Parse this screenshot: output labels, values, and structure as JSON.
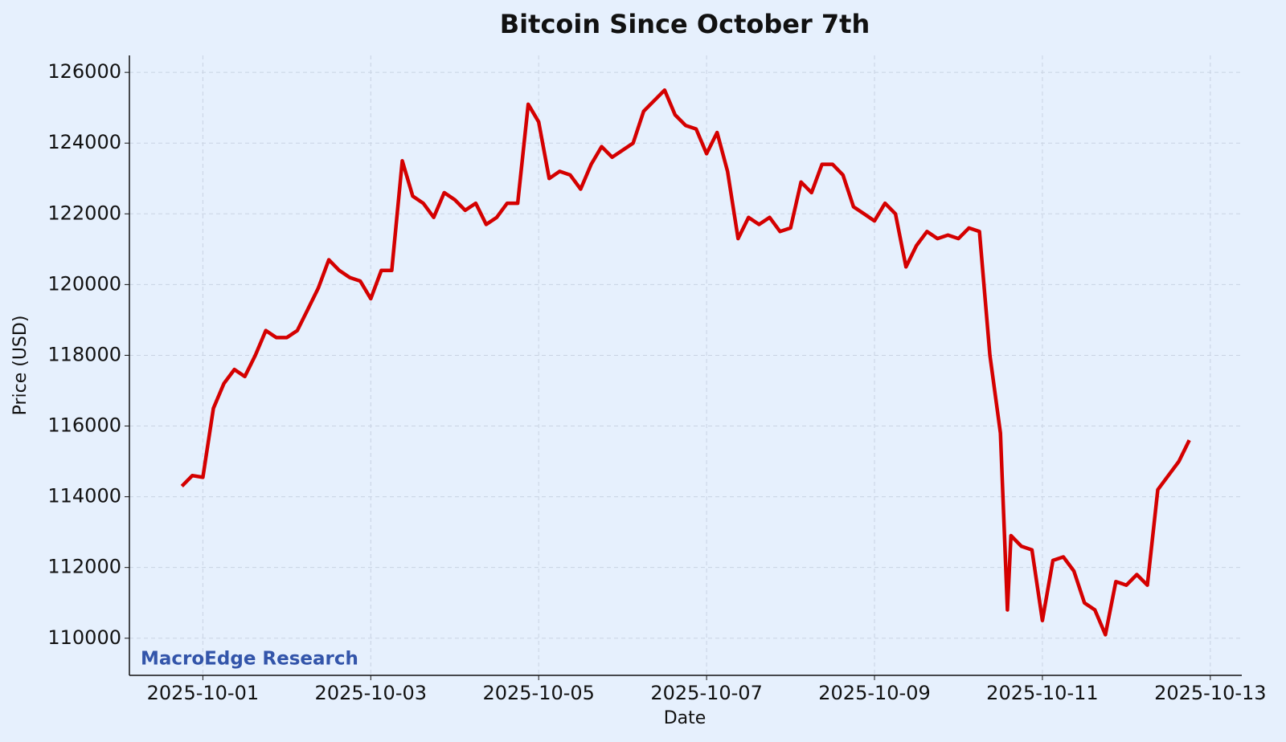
{
  "chart_data": {
    "type": "line",
    "title": "Bitcoin Since October 7th",
    "x_label": "Date",
    "y_label": "Price (USD)",
    "annotation": "MacroEdge Research",
    "color": "#d40000",
    "grid": true,
    "x": [
      "2025-09-30T18:00",
      "2025-09-30T21:00",
      "2025-10-01T00:00",
      "2025-10-01T03:00",
      "2025-10-01T06:00",
      "2025-10-01T09:00",
      "2025-10-01T12:00",
      "2025-10-01T15:00",
      "2025-10-01T18:00",
      "2025-10-01T21:00",
      "2025-10-02T00:00",
      "2025-10-02T03:00",
      "2025-10-02T06:00",
      "2025-10-02T09:00",
      "2025-10-02T12:00",
      "2025-10-02T15:00",
      "2025-10-02T18:00",
      "2025-10-02T21:00",
      "2025-10-03T00:00",
      "2025-10-03T03:00",
      "2025-10-03T06:00",
      "2025-10-03T09:00",
      "2025-10-03T12:00",
      "2025-10-03T15:00",
      "2025-10-03T18:00",
      "2025-10-03T21:00",
      "2025-10-04T00:00",
      "2025-10-04T03:00",
      "2025-10-04T06:00",
      "2025-10-04T09:00",
      "2025-10-04T12:00",
      "2025-10-04T15:00",
      "2025-10-04T18:00",
      "2025-10-04T21:00",
      "2025-10-05T00:00",
      "2025-10-05T03:00",
      "2025-10-05T06:00",
      "2025-10-05T09:00",
      "2025-10-05T12:00",
      "2025-10-05T15:00",
      "2025-10-05T18:00",
      "2025-10-05T21:00",
      "2025-10-06T00:00",
      "2025-10-06T03:00",
      "2025-10-06T06:00",
      "2025-10-06T09:00",
      "2025-10-06T12:00",
      "2025-10-06T15:00",
      "2025-10-06T18:00",
      "2025-10-06T21:00",
      "2025-10-07T00:00",
      "2025-10-07T03:00",
      "2025-10-07T06:00",
      "2025-10-07T09:00",
      "2025-10-07T12:00",
      "2025-10-07T15:00",
      "2025-10-07T18:00",
      "2025-10-07T21:00",
      "2025-10-08T00:00",
      "2025-10-08T03:00",
      "2025-10-08T06:00",
      "2025-10-08T09:00",
      "2025-10-08T12:00",
      "2025-10-08T15:00",
      "2025-10-08T18:00",
      "2025-10-08T21:00",
      "2025-10-09T00:00",
      "2025-10-09T03:00",
      "2025-10-09T06:00",
      "2025-10-09T09:00",
      "2025-10-09T12:00",
      "2025-10-09T15:00",
      "2025-10-09T18:00",
      "2025-10-09T21:00",
      "2025-10-10T00:00",
      "2025-10-10T03:00",
      "2025-10-10T06:00",
      "2025-10-10T09:00",
      "2025-10-10T12:00",
      "2025-10-10T14:00",
      "2025-10-10T15:00",
      "2025-10-10T18:00",
      "2025-10-10T21:00",
      "2025-10-11T00:00",
      "2025-10-11T03:00",
      "2025-10-11T06:00",
      "2025-10-11T09:00",
      "2025-10-11T12:00",
      "2025-10-11T15:00",
      "2025-10-11T18:00",
      "2025-10-11T21:00",
      "2025-10-12T00:00",
      "2025-10-12T03:00",
      "2025-10-12T06:00",
      "2025-10-12T09:00",
      "2025-10-12T12:00",
      "2025-10-12T15:00",
      "2025-10-12T18:00"
    ],
    "values": [
      114300,
      114600,
      114550,
      116500,
      117200,
      117600,
      117400,
      118000,
      118700,
      118500,
      118500,
      118700,
      119300,
      119900,
      120700,
      120400,
      120200,
      120100,
      119600,
      120400,
      120400,
      123500,
      122500,
      122300,
      121900,
      122600,
      122400,
      122100,
      122300,
      121700,
      121900,
      122300,
      122300,
      125100,
      124600,
      123000,
      123200,
      123100,
      122700,
      123400,
      123900,
      123600,
      123800,
      124000,
      124900,
      125200,
      125500,
      124800,
      124500,
      124400,
      123700,
      124300,
      123200,
      121300,
      121900,
      121700,
      121900,
      121500,
      121600,
      122900,
      122600,
      123400,
      123400,
      123100,
      122200,
      122000,
      121800,
      122300,
      122000,
      120500,
      121100,
      121500,
      121300,
      121400,
      121300,
      121600,
      121500,
      118000,
      115800,
      110800,
      112900,
      112600,
      112500,
      110500,
      112200,
      112300,
      111900,
      111000,
      110800,
      110100,
      111600,
      111500,
      111800,
      111500,
      114200,
      114600,
      115000,
      115600
    ],
    "xlim": [
      "2025-09-30T03:00",
      "2025-10-13T09:00"
    ],
    "xticks": [
      "2025-10-01",
      "2025-10-03",
      "2025-10-05",
      "2025-10-07",
      "2025-10-09",
      "2025-10-11",
      "2025-10-13"
    ],
    "ylim": [
      108950,
      126480
    ],
    "yticks": [
      110000,
      112000,
      114000,
      116000,
      118000,
      120000,
      122000,
      124000,
      126000
    ]
  }
}
